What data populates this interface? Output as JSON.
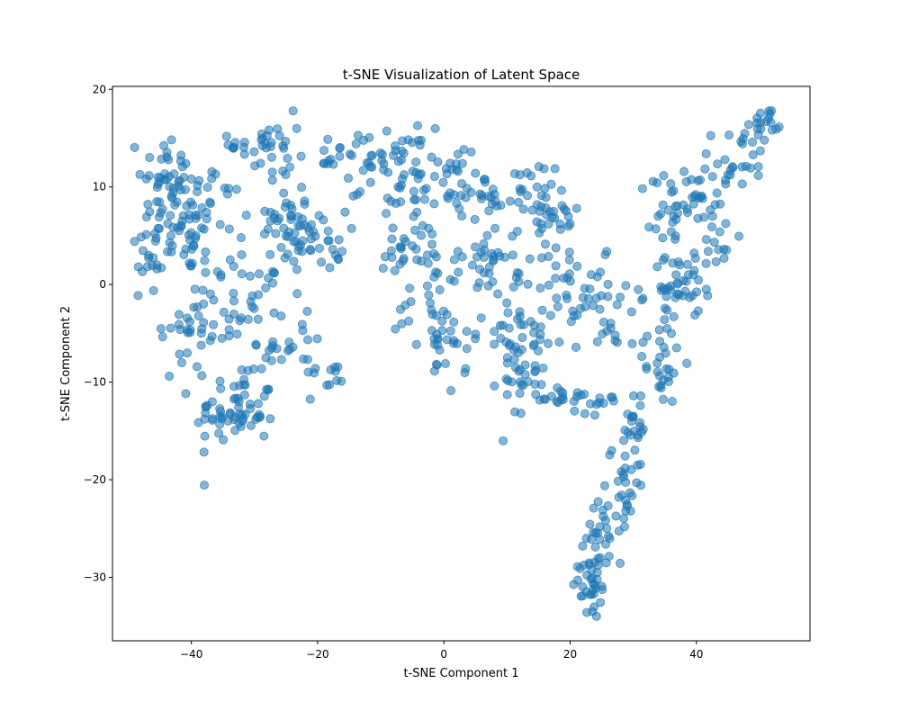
{
  "chart_data": {
    "type": "scatter",
    "title": "t-SNE Visualization of Latent Space",
    "xlabel": "t-SNE Component 1",
    "ylabel": "t-SNE Component 2",
    "xlim": [
      -52.5,
      58
    ],
    "ylim": [
      -36.5,
      20.3
    ],
    "xticks": [
      -40,
      -20,
      0,
      20,
      40
    ],
    "yticks": [
      -30,
      -20,
      -10,
      0,
      10,
      20
    ],
    "xtick_labels": [
      "−40",
      "−20",
      "0",
      "20",
      "40"
    ],
    "ytick_labels": [
      "−30",
      "−20",
      "−10",
      "0",
      "10",
      "20"
    ],
    "grid": false,
    "legend": "none",
    "marker_color": "#1f77b4",
    "marker_alpha": 0.55,
    "clusters": [
      {
        "cx": -41.0,
        "cy": 7.0,
        "sx": 3.2,
        "sy": 3.0,
        "n": 70
      },
      {
        "cx": -44.5,
        "cy": 12.0,
        "sx": 2.0,
        "sy": 1.8,
        "n": 25
      },
      {
        "cx": -46.5,
        "cy": 3.0,
        "sx": 1.6,
        "sy": 3.0,
        "n": 20
      },
      {
        "cx": -40.5,
        "cy": -5.0,
        "sx": 2.8,
        "sy": 2.5,
        "n": 28
      },
      {
        "cx": -35.5,
        "cy": 2.0,
        "sx": 2.5,
        "sy": 5.5,
        "n": 30
      },
      {
        "cx": -33.0,
        "cy": -13.0,
        "sx": 3.2,
        "sy": 1.8,
        "n": 60
      },
      {
        "cx": -30.5,
        "cy": -7.0,
        "sx": 2.0,
        "sy": 3.5,
        "n": 22
      },
      {
        "cx": -28.0,
        "cy": 14.5,
        "sx": 3.0,
        "sy": 1.5,
        "n": 32
      },
      {
        "cx": -25.0,
        "cy": 7.0,
        "sx": 2.5,
        "sy": 2.5,
        "n": 40
      },
      {
        "cx": -20.5,
        "cy": 4.5,
        "sx": 2.5,
        "sy": 1.5,
        "n": 35
      },
      {
        "cx": -29.5,
        "cy": -1.5,
        "sx": 2.0,
        "sy": 2.0,
        "n": 15
      },
      {
        "cx": -23.0,
        "cy": -6.0,
        "sx": 2.0,
        "sy": 2.0,
        "n": 15
      },
      {
        "cx": -18.5,
        "cy": -9.5,
        "sx": 2.5,
        "sy": 0.8,
        "n": 10
      },
      {
        "cx": -16.5,
        "cy": 13.5,
        "sx": 2.5,
        "sy": 1.0,
        "n": 12
      },
      {
        "cx": -10.0,
        "cy": 13.0,
        "sx": 4.0,
        "sy": 1.5,
        "n": 32
      },
      {
        "cx": -5.0,
        "cy": 10.5,
        "sx": 4.0,
        "sy": 2.0,
        "n": 32
      },
      {
        "cx": -4.5,
        "cy": 3.0,
        "sx": 3.5,
        "sy": 2.0,
        "n": 32
      },
      {
        "cx": -1.5,
        "cy": -2.0,
        "sx": 3.0,
        "sy": 2.5,
        "n": 30
      },
      {
        "cx": 0.5,
        "cy": -7.5,
        "sx": 1.5,
        "sy": 1.8,
        "n": 18
      },
      {
        "cx": 1.0,
        "cy": 12.5,
        "sx": 2.0,
        "sy": 1.5,
        "n": 15
      },
      {
        "cx": 4.5,
        "cy": 9.0,
        "sx": 2.5,
        "sy": 1.2,
        "n": 25
      },
      {
        "cx": 8.0,
        "cy": 3.0,
        "sx": 2.5,
        "sy": 1.8,
        "n": 25
      },
      {
        "cx": 10.5,
        "cy": -2.5,
        "sx": 2.2,
        "sy": 3.5,
        "n": 35
      },
      {
        "cx": 12.5,
        "cy": 9.5,
        "sx": 2.5,
        "sy": 1.5,
        "n": 20
      },
      {
        "cx": 16.5,
        "cy": 6.5,
        "sx": 2.5,
        "sy": 1.8,
        "n": 30
      },
      {
        "cx": 13.5,
        "cy": -7.0,
        "sx": 2.8,
        "sy": 2.0,
        "n": 28
      },
      {
        "cx": 17.5,
        "cy": -11.5,
        "sx": 3.0,
        "sy": 0.8,
        "n": 20
      },
      {
        "cx": 11.5,
        "cy": -10.0,
        "sx": 1.5,
        "sy": 0.8,
        "n": 10
      },
      {
        "cx": 23.0,
        "cy": -1.5,
        "sx": 3.0,
        "sy": 2.0,
        "n": 30
      },
      {
        "cx": 26.5,
        "cy": -6.0,
        "sx": 1.5,
        "sy": 1.5,
        "n": 10
      },
      {
        "cx": 18.5,
        "cy": 0.5,
        "sx": 1.5,
        "sy": 2.0,
        "n": 12
      },
      {
        "cx": 24.0,
        "cy": -12.5,
        "sx": 2.5,
        "sy": 0.8,
        "n": 10
      },
      {
        "cx": 30.0,
        "cy": -14.0,
        "sx": 1.3,
        "sy": 2.5,
        "n": 20
      },
      {
        "cx": 28.5,
        "cy": -20.0,
        "sx": 1.2,
        "sy": 2.5,
        "n": 25
      },
      {
        "cx": 26.0,
        "cy": -24.5,
        "sx": 1.5,
        "sy": 2.0,
        "n": 18
      },
      {
        "cx": 23.5,
        "cy": -28.5,
        "sx": 1.2,
        "sy": 2.3,
        "n": 28
      },
      {
        "cx": 23.5,
        "cy": -32.0,
        "sx": 1.0,
        "sy": 1.3,
        "n": 15
      },
      {
        "cx": 34.5,
        "cy": -7.5,
        "sx": 1.8,
        "sy": 2.5,
        "n": 30
      },
      {
        "cx": 35.5,
        "cy": -1.0,
        "sx": 1.5,
        "sy": 2.0,
        "n": 20
      },
      {
        "cx": 35.0,
        "cy": 7.0,
        "sx": 1.5,
        "sy": 2.5,
        "n": 22
      },
      {
        "cx": 39.0,
        "cy": 0.5,
        "sx": 2.0,
        "sy": 2.0,
        "n": 25
      },
      {
        "cx": 39.0,
        "cy": 9.0,
        "sx": 2.0,
        "sy": 1.3,
        "n": 15
      },
      {
        "cx": 43.5,
        "cy": 8.0,
        "sx": 2.0,
        "sy": 3.5,
        "n": 30
      },
      {
        "cx": 47.5,
        "cy": 13.0,
        "sx": 2.0,
        "sy": 1.5,
        "n": 18
      },
      {
        "cx": 51.5,
        "cy": 16.5,
        "sx": 1.2,
        "sy": 0.8,
        "n": 18
      }
    ]
  }
}
